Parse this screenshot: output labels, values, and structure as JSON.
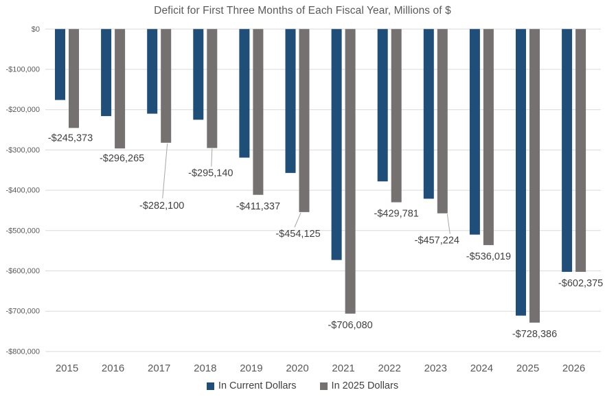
{
  "chart_data": {
    "type": "bar",
    "title": "Deficit for First Three Months of Each Fiscal Year, Millions of $",
    "categories": [
      "2015",
      "2016",
      "2017",
      "2018",
      "2019",
      "2020",
      "2021",
      "2022",
      "2023",
      "2024",
      "2025",
      "2026"
    ],
    "series": [
      {
        "name": "In Current Dollars",
        "color": "#1F4E79",
        "values": [
          -176000,
          -216000,
          -210000,
          -225000,
          -319000,
          -357000,
          -573000,
          -378000,
          -421000,
          -510000,
          -711000,
          -602375
        ]
      },
      {
        "name": "In 2025 Dollars",
        "color": "#767171",
        "values": [
          -245373,
          -296265,
          -282100,
          -295140,
          -411337,
          -454125,
          -706080,
          -429781,
          -457224,
          -536019,
          -728386,
          -602375
        ],
        "data_labels": [
          "-$245,373",
          "-$296,265",
          "-$282,100",
          "-$295,140",
          "-$411,337",
          "-$454,125",
          "-$706,080",
          "-$429,781",
          "-$457,224",
          "-$536,019",
          "-$728,386",
          "-$602,375"
        ]
      }
    ],
    "y_ticks": [
      "$0",
      "-$100,000",
      "-$200,000",
      "-$300,000",
      "-$400,000",
      "-$500,000",
      "-$600,000",
      "-$700,000",
      "-$800,000"
    ],
    "ylim": [
      -800000,
      0
    ],
    "y_gridline_interval": 100000,
    "grid": true,
    "legend_position": "bottom",
    "background_color": "#FFFFFF",
    "gridline_color": "#D9D9D9",
    "leader_line_color": "#A6A6A6",
    "title_color": "#595959",
    "axis_text_color": "#595959",
    "data_label_color": "#404040"
  }
}
